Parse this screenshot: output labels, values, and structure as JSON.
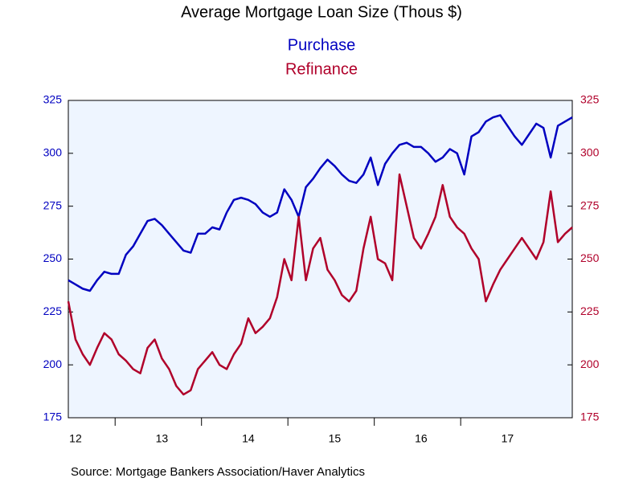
{
  "chart_data": {
    "type": "line",
    "title": "Average Mortgage Loan Size (Thous $)",
    "source": "Source:  Mortgage Bankers Association/Haver Analytics",
    "categories": [
      null,
      "12",
      null,
      null,
      null,
      null,
      null,
      null,
      null,
      null,
      null,
      null,
      null,
      "13",
      null,
      null,
      null,
      null,
      null,
      null,
      null,
      null,
      null,
      null,
      null,
      "14",
      null,
      null,
      null,
      null,
      null,
      null,
      null,
      null,
      null,
      null,
      null,
      "15",
      null,
      null,
      null,
      null,
      null,
      null,
      null,
      null,
      null,
      null,
      null,
      "16",
      null,
      null,
      null,
      null,
      null,
      null,
      null,
      null,
      null,
      null,
      null,
      "17",
      null,
      null,
      null,
      null,
      null,
      null,
      null,
      null,
      null
    ],
    "series": [
      {
        "name": "Purchase",
        "color": "#0000c0",
        "axis": "y",
        "values": [
          240,
          238,
          236,
          235,
          240,
          244,
          243,
          243,
          252,
          256,
          262,
          268,
          269,
          266,
          262,
          258,
          254,
          253,
          262,
          262,
          265,
          264,
          272,
          278,
          279,
          278,
          276,
          272,
          270,
          272,
          283,
          278,
          270,
          284,
          288,
          293,
          297,
          294,
          290,
          287,
          286,
          290,
          298,
          285,
          295,
          300,
          304,
          305,
          303,
          303,
          300,
          296,
          298,
          302,
          300,
          290,
          308,
          310,
          315,
          317,
          318,
          313,
          308,
          304,
          309,
          314,
          312,
          298,
          313,
          315,
          317
        ]
      },
      {
        "name": "Refinance",
        "color": "#b0002a",
        "axis": "y2",
        "values": [
          230,
          212,
          205,
          200,
          208,
          215,
          212,
          205,
          202,
          198,
          196,
          208,
          212,
          203,
          198,
          190,
          186,
          188,
          198,
          202,
          206,
          200,
          198,
          205,
          210,
          222,
          215,
          218,
          222,
          232,
          250,
          240,
          270,
          240,
          255,
          260,
          245,
          240,
          233,
          230,
          235,
          255,
          270,
          250,
          248,
          240,
          290,
          275,
          260,
          255,
          262,
          270,
          285,
          270,
          265,
          262,
          255,
          250,
          230,
          238,
          245,
          250,
          255,
          260,
          255,
          250,
          258,
          282,
          258,
          262,
          265
        ]
      }
    ],
    "ylim": [
      175,
      325
    ],
    "yticks": [
      175,
      200,
      225,
      250,
      275,
      300,
      325
    ],
    "y2lim": [
      175,
      325
    ],
    "y2ticks": [
      175,
      200,
      225,
      250,
      275,
      300,
      325
    ]
  }
}
